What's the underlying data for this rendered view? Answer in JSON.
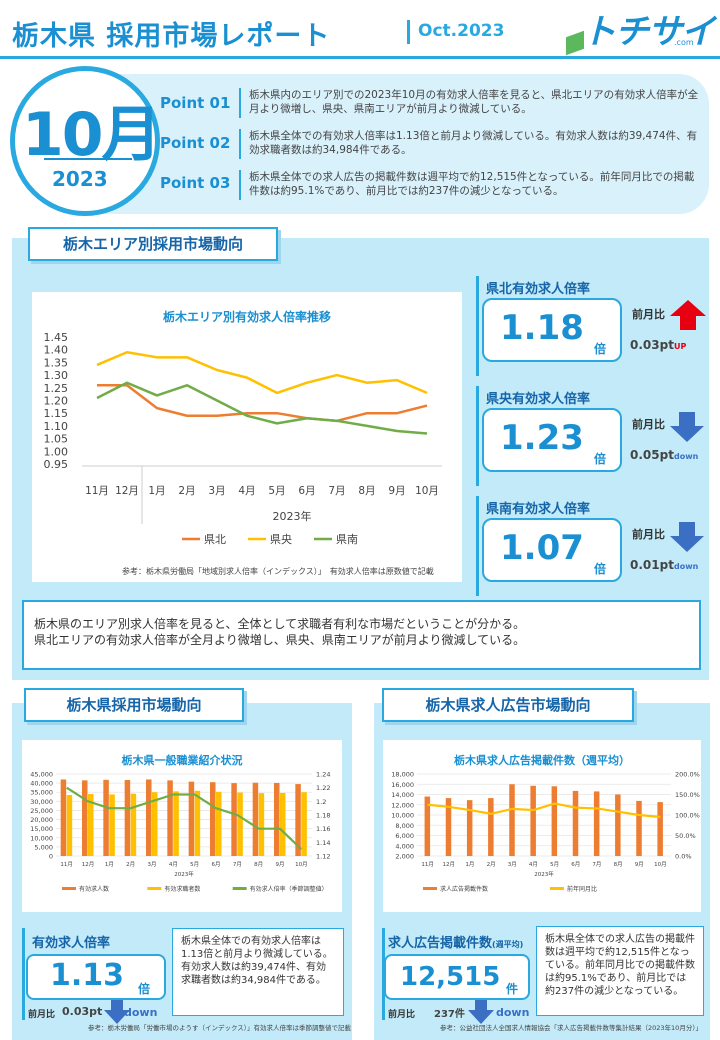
{
  "header": {
    "title": "栃木県 採用市場レポート",
    "date": "Oct.2023",
    "logo_text": "トチサイ",
    "logo_sub": ".com"
  },
  "month": {
    "num": "10月",
    "year": "2023"
  },
  "points": [
    {
      "label": "Point 01",
      "text": "栃木県内のエリア別での2023年10月の有効求人倍率を見ると、県北エリアの有効求人倍率が全月より微増し、県央、県南エリアが前月より微減している。"
    },
    {
      "label": "Point 02",
      "text": "栃木県全体での有効求人倍率は1.13倍と前月より微減している。有効求人数は約39,474件、有効求職者数は約34,984件である。"
    },
    {
      "label": "Point 03",
      "text": "栃木県全体での求人広告の掲載件数は週平均で約12,515件となっている。前年同月比での掲載件数は約95.1%であり、前月比では約237件の減少となっている。"
    }
  ],
  "area_section": {
    "title": "栃木エリア別採用市場動向",
    "chart_title": "栃木エリア別有効求人倍率推移",
    "year_label": "2023年",
    "source": "参考：栃木県労働局「地域別求人倍率（インデックス）」　有効求人倍率は原数値で記載",
    "summary_line1": "栃木県のエリア別求人倍率を見ると、全体として求職者有利な市場だということが分かる。",
    "summary_line2": "県北エリアの有効求人倍率が全月より微増し、県央、県南エリアが前月より微減している。"
  },
  "kpis": [
    {
      "title": "県北有効求人倍率",
      "value": "1.18",
      "unit": "倍",
      "mom_label": "前月比",
      "mom_value": "0.03pt",
      "direction": "UP",
      "dir_color": "#e60012"
    },
    {
      "title": "県央有効求人倍率",
      "value": "1.23",
      "unit": "倍",
      "mom_label": "前月比",
      "mom_value": "0.05pt",
      "direction": "down",
      "dir_color": "#3a6fc4"
    },
    {
      "title": "県南有効求人倍率",
      "value": "1.07",
      "unit": "倍",
      "mom_label": "前月比",
      "mom_value": "0.01pt",
      "direction": "down",
      "dir_color": "#3a6fc4"
    }
  ],
  "employment_section": {
    "title": "栃木県採用市場動向",
    "chart_title": "栃木県一般職業紹介状況",
    "year_label": "2023年",
    "kpi_title": "有効求人倍率",
    "kpi_value": "1.13",
    "kpi_unit": "倍",
    "mom_label": "前月比",
    "mom_value": "0.03pt",
    "direction": "down",
    "note": "栃木県全体での有効求人倍率は1.13倍と前月より微減している。有効求人数は約39,474件、有効求職者数は約34,984件である。",
    "source": "参考：栃木労働局「労働市場のようす（インデックス）」有効求人倍率は季節調整値で記載"
  },
  "ads_section": {
    "title": "栃木県求人広告市場動向",
    "chart_title": "栃木県求人広告掲載件数（週平均）",
    "year_label": "2023年",
    "kpi_title": "求人広告掲載件数",
    "kpi_sub": "(週平均)",
    "kpi_value": "12,515",
    "kpi_unit": "件",
    "mom_label": "前月比",
    "mom_value": "237件",
    "direction": "down",
    "note": "栃木県全体での求人広告の掲載件数は週平均で約12,515件となっている。前年同月比での掲載件数は約95.1%であり、前月比では約237件の減少となっている。",
    "source": "参考：公益社団法人全国求人情報協会「求人広告掲載件数等集計結果（2023年10月分）」"
  },
  "chart_data": [
    {
      "type": "line",
      "title": "栃木エリア別有効求人倍率推移",
      "xlabel": "2023年",
      "categories": [
        "11月",
        "12月",
        "1月",
        "2月",
        "3月",
        "4月",
        "5月",
        "6月",
        "7月",
        "8月",
        "9月",
        "10月"
      ],
      "series": [
        {
          "name": "県北",
          "color": "#ed7d31",
          "values": [
            1.26,
            1.26,
            1.17,
            1.14,
            1.14,
            1.15,
            1.15,
            1.13,
            1.12,
            1.15,
            1.15,
            1.18
          ]
        },
        {
          "name": "県央",
          "color": "#ffc000",
          "values": [
            1.34,
            1.39,
            1.37,
            1.37,
            1.32,
            1.29,
            1.23,
            1.27,
            1.3,
            1.27,
            1.28,
            1.23
          ]
        },
        {
          "name": "県南",
          "color": "#70ad47",
          "values": [
            1.21,
            1.27,
            1.22,
            1.26,
            1.2,
            1.14,
            1.11,
            1.13,
            1.12,
            1.1,
            1.08,
            1.07
          ]
        }
      ],
      "ylim": [
        0.95,
        1.45
      ],
      "yticks": [
        "1.45",
        "1.40",
        "1.35",
        "1.30",
        "1.25",
        "1.20",
        "1.15",
        "1.10",
        "1.05",
        "1.00",
        "0.95"
      ],
      "legend": "bottom"
    },
    {
      "type": "bar",
      "title": "栃木県一般職業紹介状況",
      "xlabel": "2023年",
      "categories": [
        "11月",
        "12月",
        "1月",
        "2月",
        "3月",
        "4月",
        "5月",
        "6月",
        "7月",
        "8月",
        "9月",
        "10月"
      ],
      "series": [
        {
          "name": "有効求人数",
          "color": "#ed7d31",
          "axis": "left",
          "values": [
            42000,
            41500,
            41800,
            41700,
            42000,
            41500,
            40800,
            40500,
            40000,
            40200,
            40100,
            39474
          ]
        },
        {
          "name": "有効求職者数",
          "color": "#ffc000",
          "axis": "left",
          "values": [
            33500,
            34000,
            33800,
            34200,
            35000,
            35500,
            35800,
            35200,
            34800,
            34500,
            34600,
            34984
          ]
        },
        {
          "name": "有効求人倍率（季節調整値）",
          "color": "#70ad47",
          "axis": "right",
          "type": "line",
          "values": [
            1.22,
            1.2,
            1.19,
            1.19,
            1.2,
            1.21,
            1.21,
            1.19,
            1.18,
            1.16,
            1.16,
            1.13
          ]
        }
      ],
      "ylim": [
        0,
        45000
      ],
      "yticks": [
        "45,000",
        "40,000",
        "35,000",
        "30,000",
        "25,000",
        "20,000",
        "15,000",
        "10,000",
        "5,000",
        "0"
      ],
      "y2lim": [
        1.12,
        1.24
      ],
      "y2ticks": [
        "1.24",
        "1.22",
        "1.2",
        "1.18",
        "1.16",
        "1.14",
        "1.12"
      ],
      "legend": "bottom"
    },
    {
      "type": "bar",
      "title": "栃木県求人広告掲載件数（週平均）",
      "xlabel": "2023年",
      "categories": [
        "11月",
        "12月",
        "1月",
        "2月",
        "3月",
        "4月",
        "5月",
        "6月",
        "7月",
        "8月",
        "9月",
        "10月"
      ],
      "series": [
        {
          "name": "求人広告掲載件数",
          "color": "#ed7d31",
          "axis": "left",
          "values": [
            13600,
            13300,
            12900,
            13300,
            16000,
            15700,
            15600,
            14700,
            14600,
            14000,
            12752,
            12515
          ]
        },
        {
          "name": "前年同月比",
          "color": "#ffc000",
          "axis": "right",
          "type": "line",
          "values": [
            125,
            120,
            112,
            103,
            115,
            112,
            128,
            118,
            116,
            108,
            100,
            95.1
          ]
        }
      ],
      "ylim": [
        2000,
        18000
      ],
      "yticks": [
        "18,000",
        "16,000",
        "14,000",
        "12,000",
        "10,000",
        "8,000",
        "6,000",
        "4,000",
        "2,000"
      ],
      "y2lim": [
        0,
        200
      ],
      "y2ticks": [
        "200.0%",
        "150.0%",
        "100.0%",
        "50.0%",
        "0.0%"
      ],
      "legend": "bottom"
    }
  ]
}
